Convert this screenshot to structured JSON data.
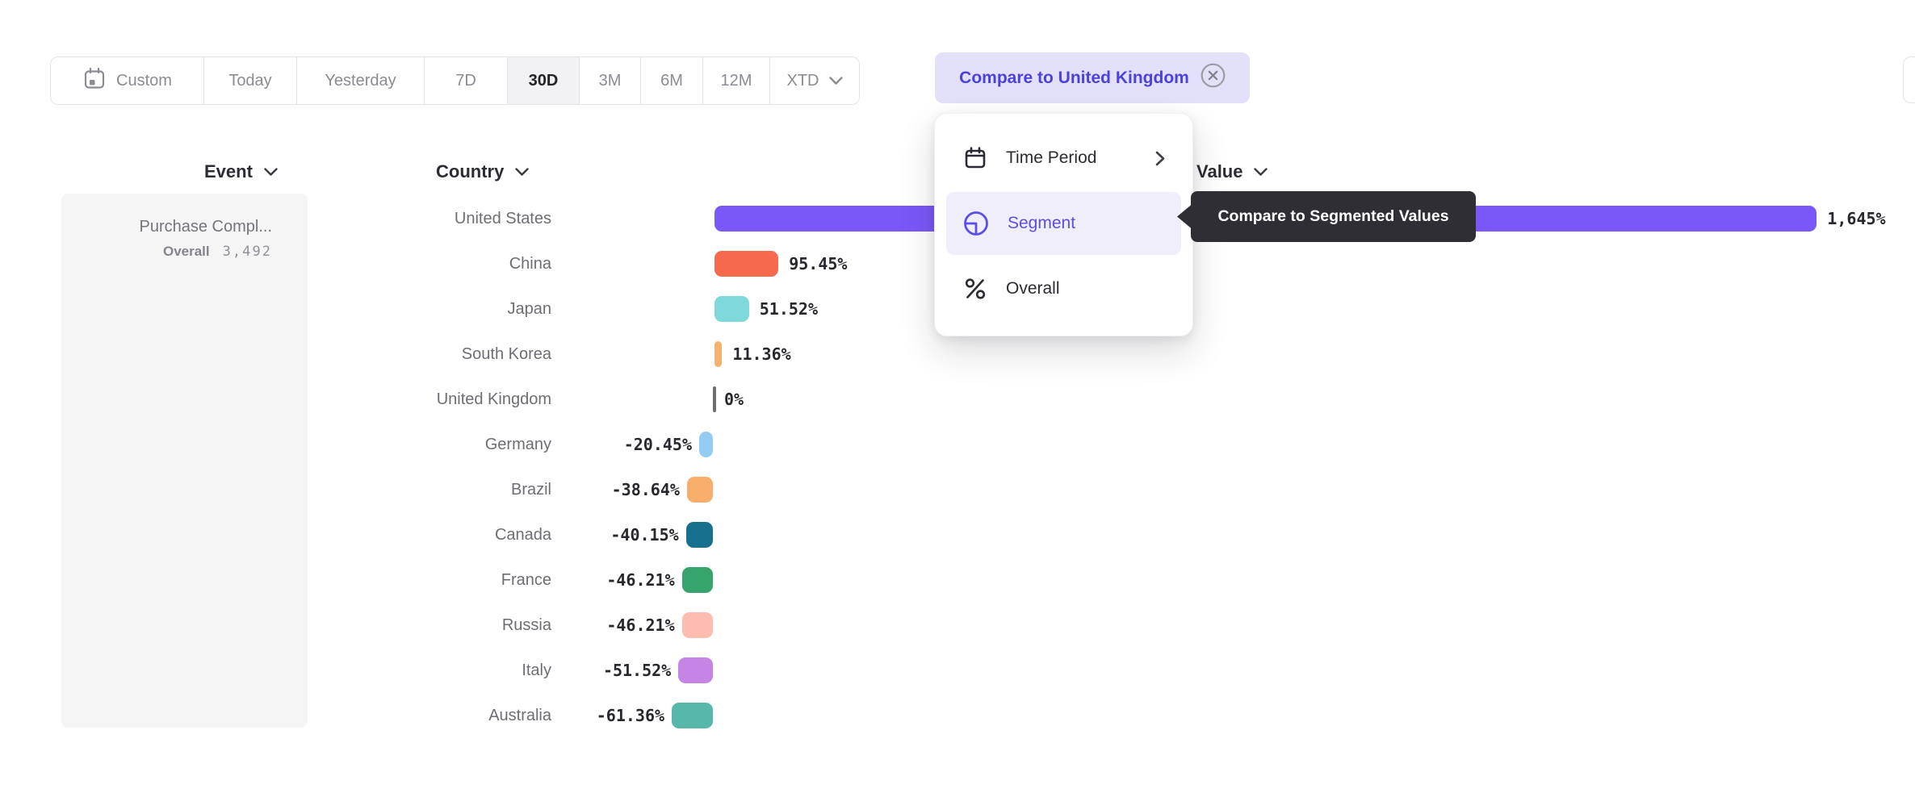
{
  "toolbar": {
    "items": [
      {
        "label": "Custom",
        "icon": "calendar",
        "active": false
      },
      {
        "label": "Today",
        "active": false
      },
      {
        "label": "Yesterday",
        "active": false
      },
      {
        "label": "7D",
        "active": false
      },
      {
        "label": "30D",
        "active": true
      },
      {
        "label": "3M",
        "active": false
      },
      {
        "label": "6M",
        "active": false
      },
      {
        "label": "12M",
        "active": false
      },
      {
        "label": "XTD",
        "icon": "chevron-down",
        "active": false
      }
    ],
    "compare_label": "Compare to United Kingdom",
    "compare_colors": {
      "background": "#e3e0fa",
      "text": "#4b42dd"
    }
  },
  "headers": {
    "event": "Event",
    "country": "Country",
    "value": "Value"
  },
  "event_panel": {
    "title": "Purchase Compl...",
    "segment_label": "Overall",
    "segment_value": "3,492"
  },
  "chart_data": {
    "type": "bar",
    "orientation": "horizontal",
    "categories": [
      "United States",
      "China",
      "Japan",
      "South Korea",
      "United Kingdom",
      "Germany",
      "Brazil",
      "Canada",
      "France",
      "Russia",
      "Italy",
      "Australia"
    ],
    "values": [
      1645,
      95.45,
      51.52,
      11.36,
      0,
      -20.45,
      -38.64,
      -40.15,
      -46.21,
      -46.21,
      -51.52,
      -61.36
    ],
    "value_labels": [
      "1,645%",
      "95.45%",
      "51.52%",
      "11.36%",
      "0%",
      "-20.45%",
      "-38.64%",
      "-40.15%",
      "-46.21%",
      "-46.21%",
      "-51.52%",
      "-61.36%"
    ],
    "colors": [
      "#7a58f8",
      "#f6694d",
      "#7fd9db",
      "#f9b26e",
      "#6f6b78",
      "#93cdf1",
      "#f9ae6c",
      "#17718e",
      "#36a56d",
      "#fdbcae",
      "#c684e4",
      "#57b7ab"
    ],
    "textured": [
      false,
      false,
      false,
      false,
      false,
      true,
      true,
      false,
      false,
      false,
      false,
      false
    ],
    "baseline_category": "United Kingdom",
    "xlim": [
      -100,
      1700
    ],
    "title": "",
    "xlabel": "",
    "ylabel": ""
  },
  "menu": {
    "items": [
      {
        "label": "Time Period",
        "icon": "calendar",
        "has_submenu": true,
        "selected": false
      },
      {
        "label": "Segment",
        "icon": "segment",
        "has_submenu": false,
        "selected": true
      },
      {
        "label": "Overall",
        "icon": "percent",
        "has_submenu": false,
        "selected": false
      }
    ],
    "selected_color": "#5b4ee8"
  },
  "tooltip": {
    "text": "Compare to Segmented Values",
    "background": "#2f2e35"
  }
}
